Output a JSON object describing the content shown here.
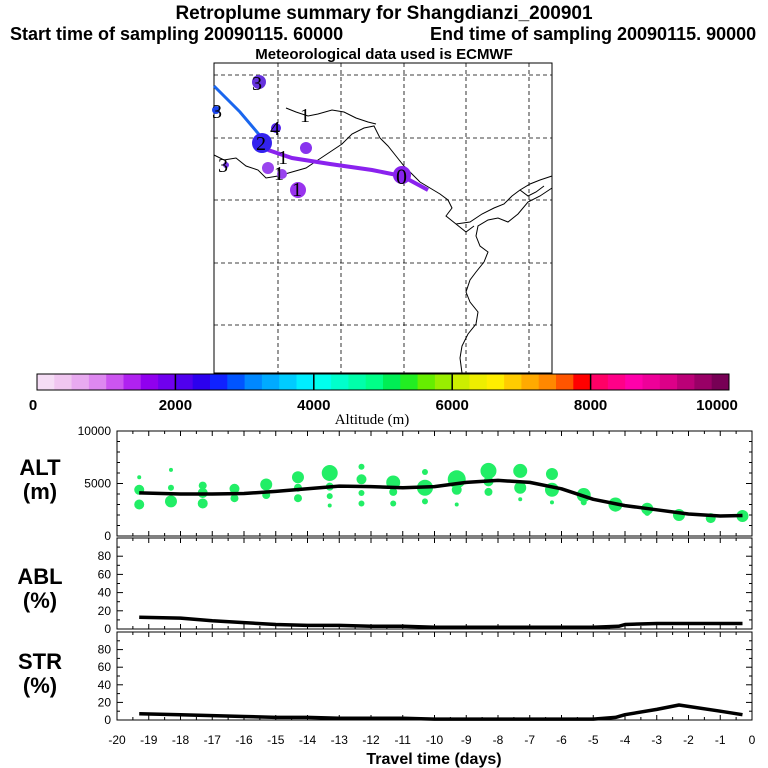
{
  "header": {
    "title": "Retroplume summary for Shangdianzi_200901",
    "start": "Start time of sampling 20090115. 60000",
    "end": "End time of sampling 20090115. 90000",
    "met": "Meteorological data used is ECMWF"
  },
  "map": {
    "trajectory_points": [
      {
        "label": "0",
        "color": "#8a00e6"
      },
      {
        "label": "1",
        "color": "#6600ff"
      },
      {
        "label": "2",
        "color": "#4400ff"
      },
      {
        "label": "3",
        "color": "#3300ff"
      },
      {
        "label": "4",
        "color": "#0066ff"
      }
    ],
    "cluster_labels": [
      "0",
      "1",
      "1",
      "1",
      "1",
      "2",
      "3",
      "3",
      "4"
    ]
  },
  "colorbar": {
    "label": "Altitude (m)",
    "ticks": [
      "0",
      "2000",
      "4000",
      "6000",
      "8000",
      "10000"
    ],
    "colors": [
      "#f5ddf5",
      "#f0c6f0",
      "#e8aaf0",
      "#de88f0",
      "#cc55f0",
      "#b022f0",
      "#9000ee",
      "#7000ee",
      "#5000ee",
      "#2c00ee",
      "#1022ff",
      "#0055ff",
      "#0088ff",
      "#00aaff",
      "#00ccff",
      "#00eeff",
      "#00ffee",
      "#00ffcc",
      "#00ffaa",
      "#00ff88",
      "#00ee55",
      "#22ee22",
      "#66ee00",
      "#99ee00",
      "#ccee00",
      "#eeee00",
      "#ffee00",
      "#ffcc00",
      "#ffaa00",
      "#ff8800",
      "#ff5500",
      "#ff0000",
      "#ff0066",
      "#ff0088",
      "#ff00aa",
      "#ee0099",
      "#dd0088",
      "#bb0077",
      "#990066",
      "#770055"
    ]
  },
  "chart_data": [
    {
      "type": "line",
      "panel": "ALT",
      "ylabel": "ALT\n(m)",
      "ylabel_line1": "ALT",
      "ylabel_line2": "(m)",
      "ylim": [
        0,
        10000
      ],
      "yticks": [
        "10000",
        "5000",
        "0"
      ],
      "x": [
        -19.3,
        -18,
        -17,
        -16,
        -15,
        -14,
        -13,
        -12,
        -11,
        -10,
        -9,
        -8,
        -7,
        -6,
        -5,
        -4,
        -3,
        -2,
        -1,
        -0.3
      ],
      "values": [
        4100,
        4000,
        4000,
        4050,
        4250,
        4500,
        4750,
        4700,
        4600,
        4700,
        5100,
        5300,
        5100,
        4500,
        3500,
        2900,
        2500,
        2100,
        1900,
        1950
      ],
      "dots": [
        {
          "x": -19.3,
          "y": 4400,
          "r": 5
        },
        {
          "x": -19.3,
          "y": 3000,
          "r": 5
        },
        {
          "x": -19.3,
          "y": 5600,
          "r": 2
        },
        {
          "x": -18.3,
          "y": 4600,
          "r": 3
        },
        {
          "x": -18.3,
          "y": 3300,
          "r": 6
        },
        {
          "x": -18.3,
          "y": 6300,
          "r": 2
        },
        {
          "x": -17.3,
          "y": 4800,
          "r": 4
        },
        {
          "x": -17.3,
          "y": 4100,
          "r": 5
        },
        {
          "x": -17.3,
          "y": 3100,
          "r": 5
        },
        {
          "x": -16.3,
          "y": 4500,
          "r": 5
        },
        {
          "x": -16.3,
          "y": 3600,
          "r": 4
        },
        {
          "x": -15.3,
          "y": 4900,
          "r": 6
        },
        {
          "x": -15.3,
          "y": 3900,
          "r": 4
        },
        {
          "x": -14.3,
          "y": 5600,
          "r": 6
        },
        {
          "x": -14.3,
          "y": 4600,
          "r": 4
        },
        {
          "x": -14.3,
          "y": 3600,
          "r": 4
        },
        {
          "x": -13.3,
          "y": 6000,
          "r": 8
        },
        {
          "x": -13.3,
          "y": 4700,
          "r": 4
        },
        {
          "x": -13.3,
          "y": 3800,
          "r": 3
        },
        {
          "x": -13.3,
          "y": 2900,
          "r": 2
        },
        {
          "x": -12.3,
          "y": 6600,
          "r": 3
        },
        {
          "x": -12.3,
          "y": 5400,
          "r": 5
        },
        {
          "x": -12.3,
          "y": 4100,
          "r": 3
        },
        {
          "x": -12.3,
          "y": 3100,
          "r": 3
        },
        {
          "x": -11.3,
          "y": 5100,
          "r": 7
        },
        {
          "x": -11.3,
          "y": 4200,
          "r": 4
        },
        {
          "x": -11.3,
          "y": 3100,
          "r": 3
        },
        {
          "x": -10.3,
          "y": 6100,
          "r": 3
        },
        {
          "x": -10.3,
          "y": 4600,
          "r": 8
        },
        {
          "x": -10.3,
          "y": 3300,
          "r": 3
        },
        {
          "x": -9.3,
          "y": 5400,
          "r": 9
        },
        {
          "x": -9.3,
          "y": 4400,
          "r": 5
        },
        {
          "x": -9.3,
          "y": 3000,
          "r": 2
        },
        {
          "x": -8.3,
          "y": 6200,
          "r": 8
        },
        {
          "x": -8.3,
          "y": 5200,
          "r": 5
        },
        {
          "x": -8.3,
          "y": 4200,
          "r": 4
        },
        {
          "x": -7.3,
          "y": 6200,
          "r": 7
        },
        {
          "x": -7.3,
          "y": 4600,
          "r": 6
        },
        {
          "x": -7.3,
          "y": 3500,
          "r": 2
        },
        {
          "x": -6.3,
          "y": 5900,
          "r": 6
        },
        {
          "x": -6.3,
          "y": 4400,
          "r": 7
        },
        {
          "x": -6.3,
          "y": 3200,
          "r": 2
        },
        {
          "x": -5.3,
          "y": 3900,
          "r": 7
        },
        {
          "x": -5.3,
          "y": 3200,
          "r": 3
        },
        {
          "x": -4.3,
          "y": 3000,
          "r": 7
        },
        {
          "x": -4.3,
          "y": 2600,
          "r": 3
        },
        {
          "x": -3.3,
          "y": 2600,
          "r": 6
        },
        {
          "x": -3.3,
          "y": 2200,
          "r": 3
        },
        {
          "x": -2.3,
          "y": 2000,
          "r": 6
        },
        {
          "x": -1.3,
          "y": 1700,
          "r": 5
        },
        {
          "x": -0.3,
          "y": 1900,
          "r": 6
        }
      ]
    },
    {
      "type": "line",
      "panel": "ABL",
      "ylabel": "ABL\n(%)",
      "ylabel_line1": "ABL",
      "ylabel_line2": "(%)",
      "ylim": [
        0,
        100
      ],
      "yticks": [
        "80",
        "60",
        "40",
        "20",
        "0"
      ],
      "x": [
        -19.3,
        -18,
        -17,
        -16,
        -15,
        -14,
        -13,
        -12,
        -11,
        -10,
        -9,
        -8,
        -7,
        -6,
        -5,
        -4.2,
        -4,
        -3,
        -2,
        -1,
        -0.3
      ],
      "values": [
        13,
        12,
        9,
        7,
        5,
        4,
        4,
        3,
        3,
        2,
        2,
        2,
        2,
        2,
        2,
        3,
        5,
        6,
        6,
        6,
        6
      ]
    },
    {
      "type": "line",
      "panel": "STR",
      "ylabel": "STR\n(%)",
      "ylabel_line1": "STR",
      "ylabel_line2": "(%)",
      "ylim": [
        0,
        100
      ],
      "yticks": [
        "80",
        "60",
        "40",
        "20",
        "0"
      ],
      "x": [
        -19.3,
        -18,
        -17,
        -16,
        -15,
        -14,
        -13,
        -12,
        -11,
        -10,
        -9,
        -8,
        -7,
        -6,
        -5,
        -4.3,
        -4,
        -3,
        -2.3,
        -1,
        -0.3
      ],
      "values": [
        7,
        6,
        5,
        4,
        3,
        3,
        2,
        2,
        2,
        1,
        1,
        1,
        1,
        1,
        1,
        3,
        6,
        12,
        17,
        10,
        6
      ]
    }
  ],
  "xaxis": {
    "label": "Travel time (days)",
    "xlim": [
      -20,
      0
    ],
    "ticks": [
      "-20",
      "-19",
      "-18",
      "-17",
      "-16",
      "-15",
      "-14",
      "-13",
      "-12",
      "-11",
      "-10",
      "-9",
      "-8",
      "-7",
      "-6",
      "-5",
      "-4",
      "-3",
      "-2",
      "-1",
      "0"
    ]
  },
  "colors": {
    "dot": "#22ee66",
    "line": "#000000",
    "traj_blue": "#1a66ee",
    "traj_purple": "#8a22ee"
  }
}
